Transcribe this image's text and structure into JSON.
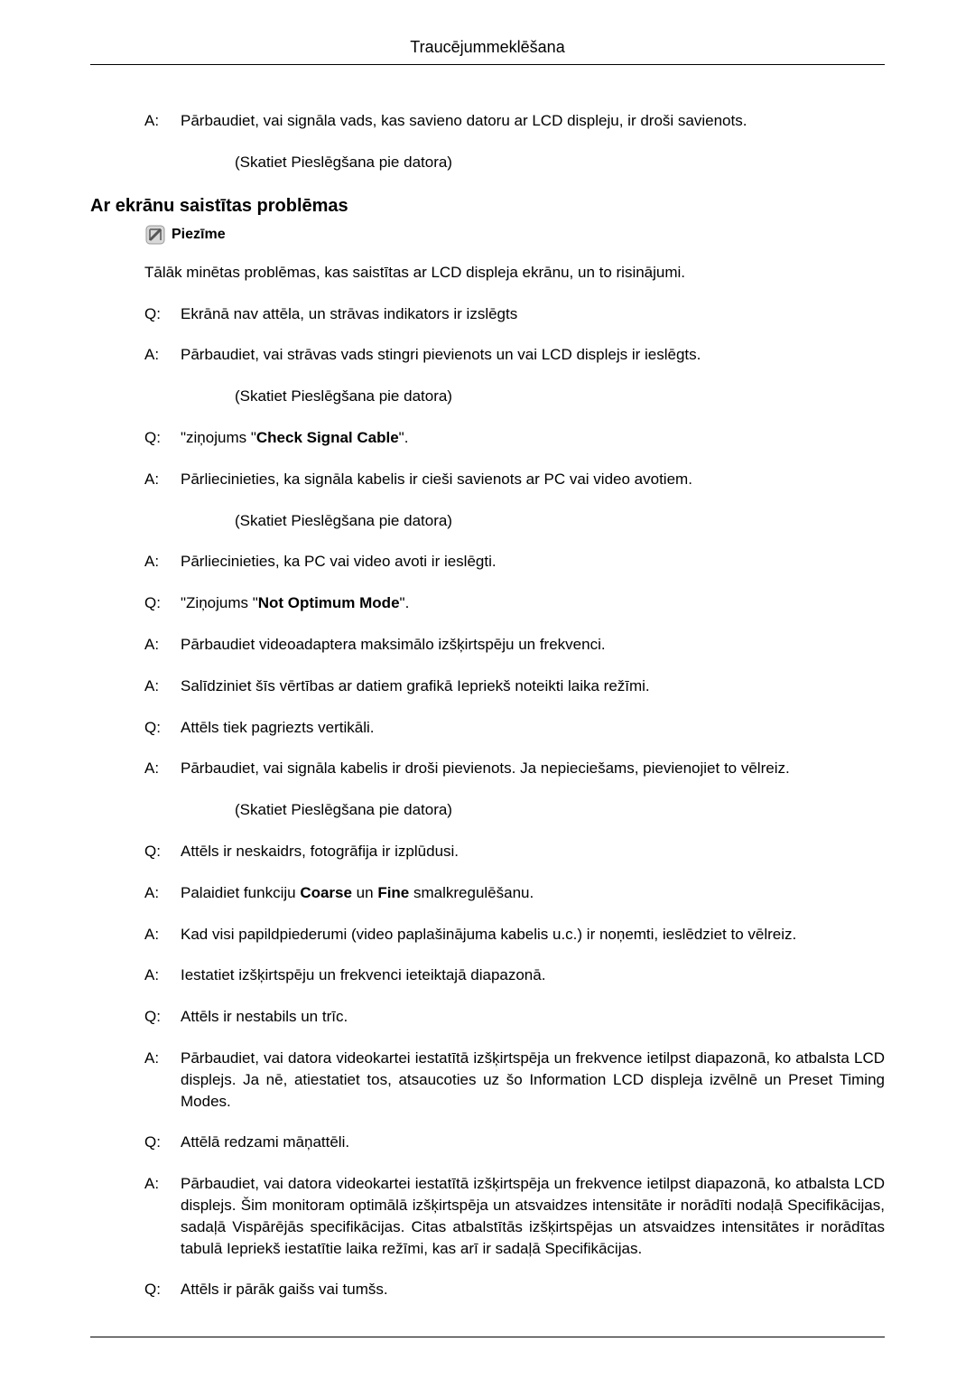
{
  "header": "Traucējummeklēšana",
  "top_qa": {
    "a1": "Pārbaudiet, vai signāla vads, kas savieno datoru ar LCD displeju, ir droši savienots.",
    "a1_sub": "(Skatiet Pieslēgšana pie datora)"
  },
  "section_heading": "Ar ekrānu saistītas problēmas",
  "note_label": "Piezīme",
  "intro": "Tālāk minētas problēmas, kas saistītas ar LCD displeja ekrānu, un to risinājumi.",
  "qa": [
    {
      "l": "Q:",
      "t": "Ekrānā nav attēla, un strāvas indikators ir izslēgts"
    },
    {
      "l": "A:",
      "t": "Pārbaudiet, vai strāvas vads stingri pievienots un vai LCD displejs ir ieslēgts."
    },
    {
      "sub": "(Skatiet Pieslēgšana pie datora)"
    },
    {
      "l": "Q:",
      "t_pre": "\"ziņojums \"",
      "t_bold": "Check Signal Cable",
      "t_post": "\"."
    },
    {
      "l": "A:",
      "t": "Pārliecinieties, ka signāla kabelis ir cieši savienots ar PC vai video avotiem."
    },
    {
      "sub": "(Skatiet Pieslēgšana pie datora)"
    },
    {
      "l": "A:",
      "t": "Pārliecinieties, ka PC vai video avoti ir ieslēgti."
    },
    {
      "l": "Q:",
      "t_pre": "\"Ziņojums \"",
      "t_bold": "Not Optimum Mode",
      "t_post": "\"."
    },
    {
      "l": "A:",
      "t": "Pārbaudiet videoadaptera maksimālo izšķirtspēju un frekvenci."
    },
    {
      "l": "A:",
      "t": "Salīdziniet šīs vērtības ar datiem grafikā Iepriekš noteikti laika režīmi."
    },
    {
      "l": "Q:",
      "t": "Attēls tiek pagriezts vertikāli."
    },
    {
      "l": "A:",
      "t": "Pārbaudiet, vai signāla kabelis ir droši pievienots. Ja nepieciešams, pievienojiet to vēlreiz."
    },
    {
      "sub": "(Skatiet Pieslēgšana pie datora)"
    },
    {
      "l": "Q:",
      "t": "Attēls ir neskaidrs, fotogrāfija ir izplūdusi."
    },
    {
      "l": "A:",
      "t_pre": "Palaidiet funkciju ",
      "t_bold": "Coarse",
      "t_mid": " un ",
      "t_bold2": "Fine",
      "t_post": " smalkregulēšanu."
    },
    {
      "l": "A:",
      "t": "Kad visi papildpiederumi (video paplašinājuma kabelis u.c.) ir noņemti, ieslēdziet to vēlreiz."
    },
    {
      "l": "A:",
      "t": "Iestatiet izšķirtspēju un frekvenci ieteiktajā diapazonā."
    },
    {
      "l": "Q:",
      "t": "Attēls ir nestabils un trīc."
    },
    {
      "l": "A:",
      "t": "Pārbaudiet, vai datora videokartei iestatītā izšķirtspēja un frekvence ietilpst diapazonā, ko atbalsta LCD displejs. Ja nē, atiestatiet tos, atsaucoties uz šo Information LCD displeja izvēlnē un Preset Timing Modes."
    },
    {
      "l": "Q:",
      "t": "Attēlā redzami māņattēli."
    },
    {
      "l": "A:",
      "t": "Pārbaudiet, vai datora videokartei iestatītā izšķirtspēja un frekvence ietilpst diapazonā, ko atbalsta LCD displejs. Šim monitoram optimālā izšķirtspēja un atsvaidzes intensitāte ir norādīti nodaļā Specifikācijas, sadaļā Vispārējās specifikācijas. Citas atbalstītās izšķirtspējas un atsvaidzes intensitātes ir norādītas tabulā Iepriekš iestatītie laika režīmi, kas arī ir sadaļā Specifikācijas."
    },
    {
      "l": "Q:",
      "t": "Attēls ir pārāk gaišs vai tumšs."
    }
  ]
}
